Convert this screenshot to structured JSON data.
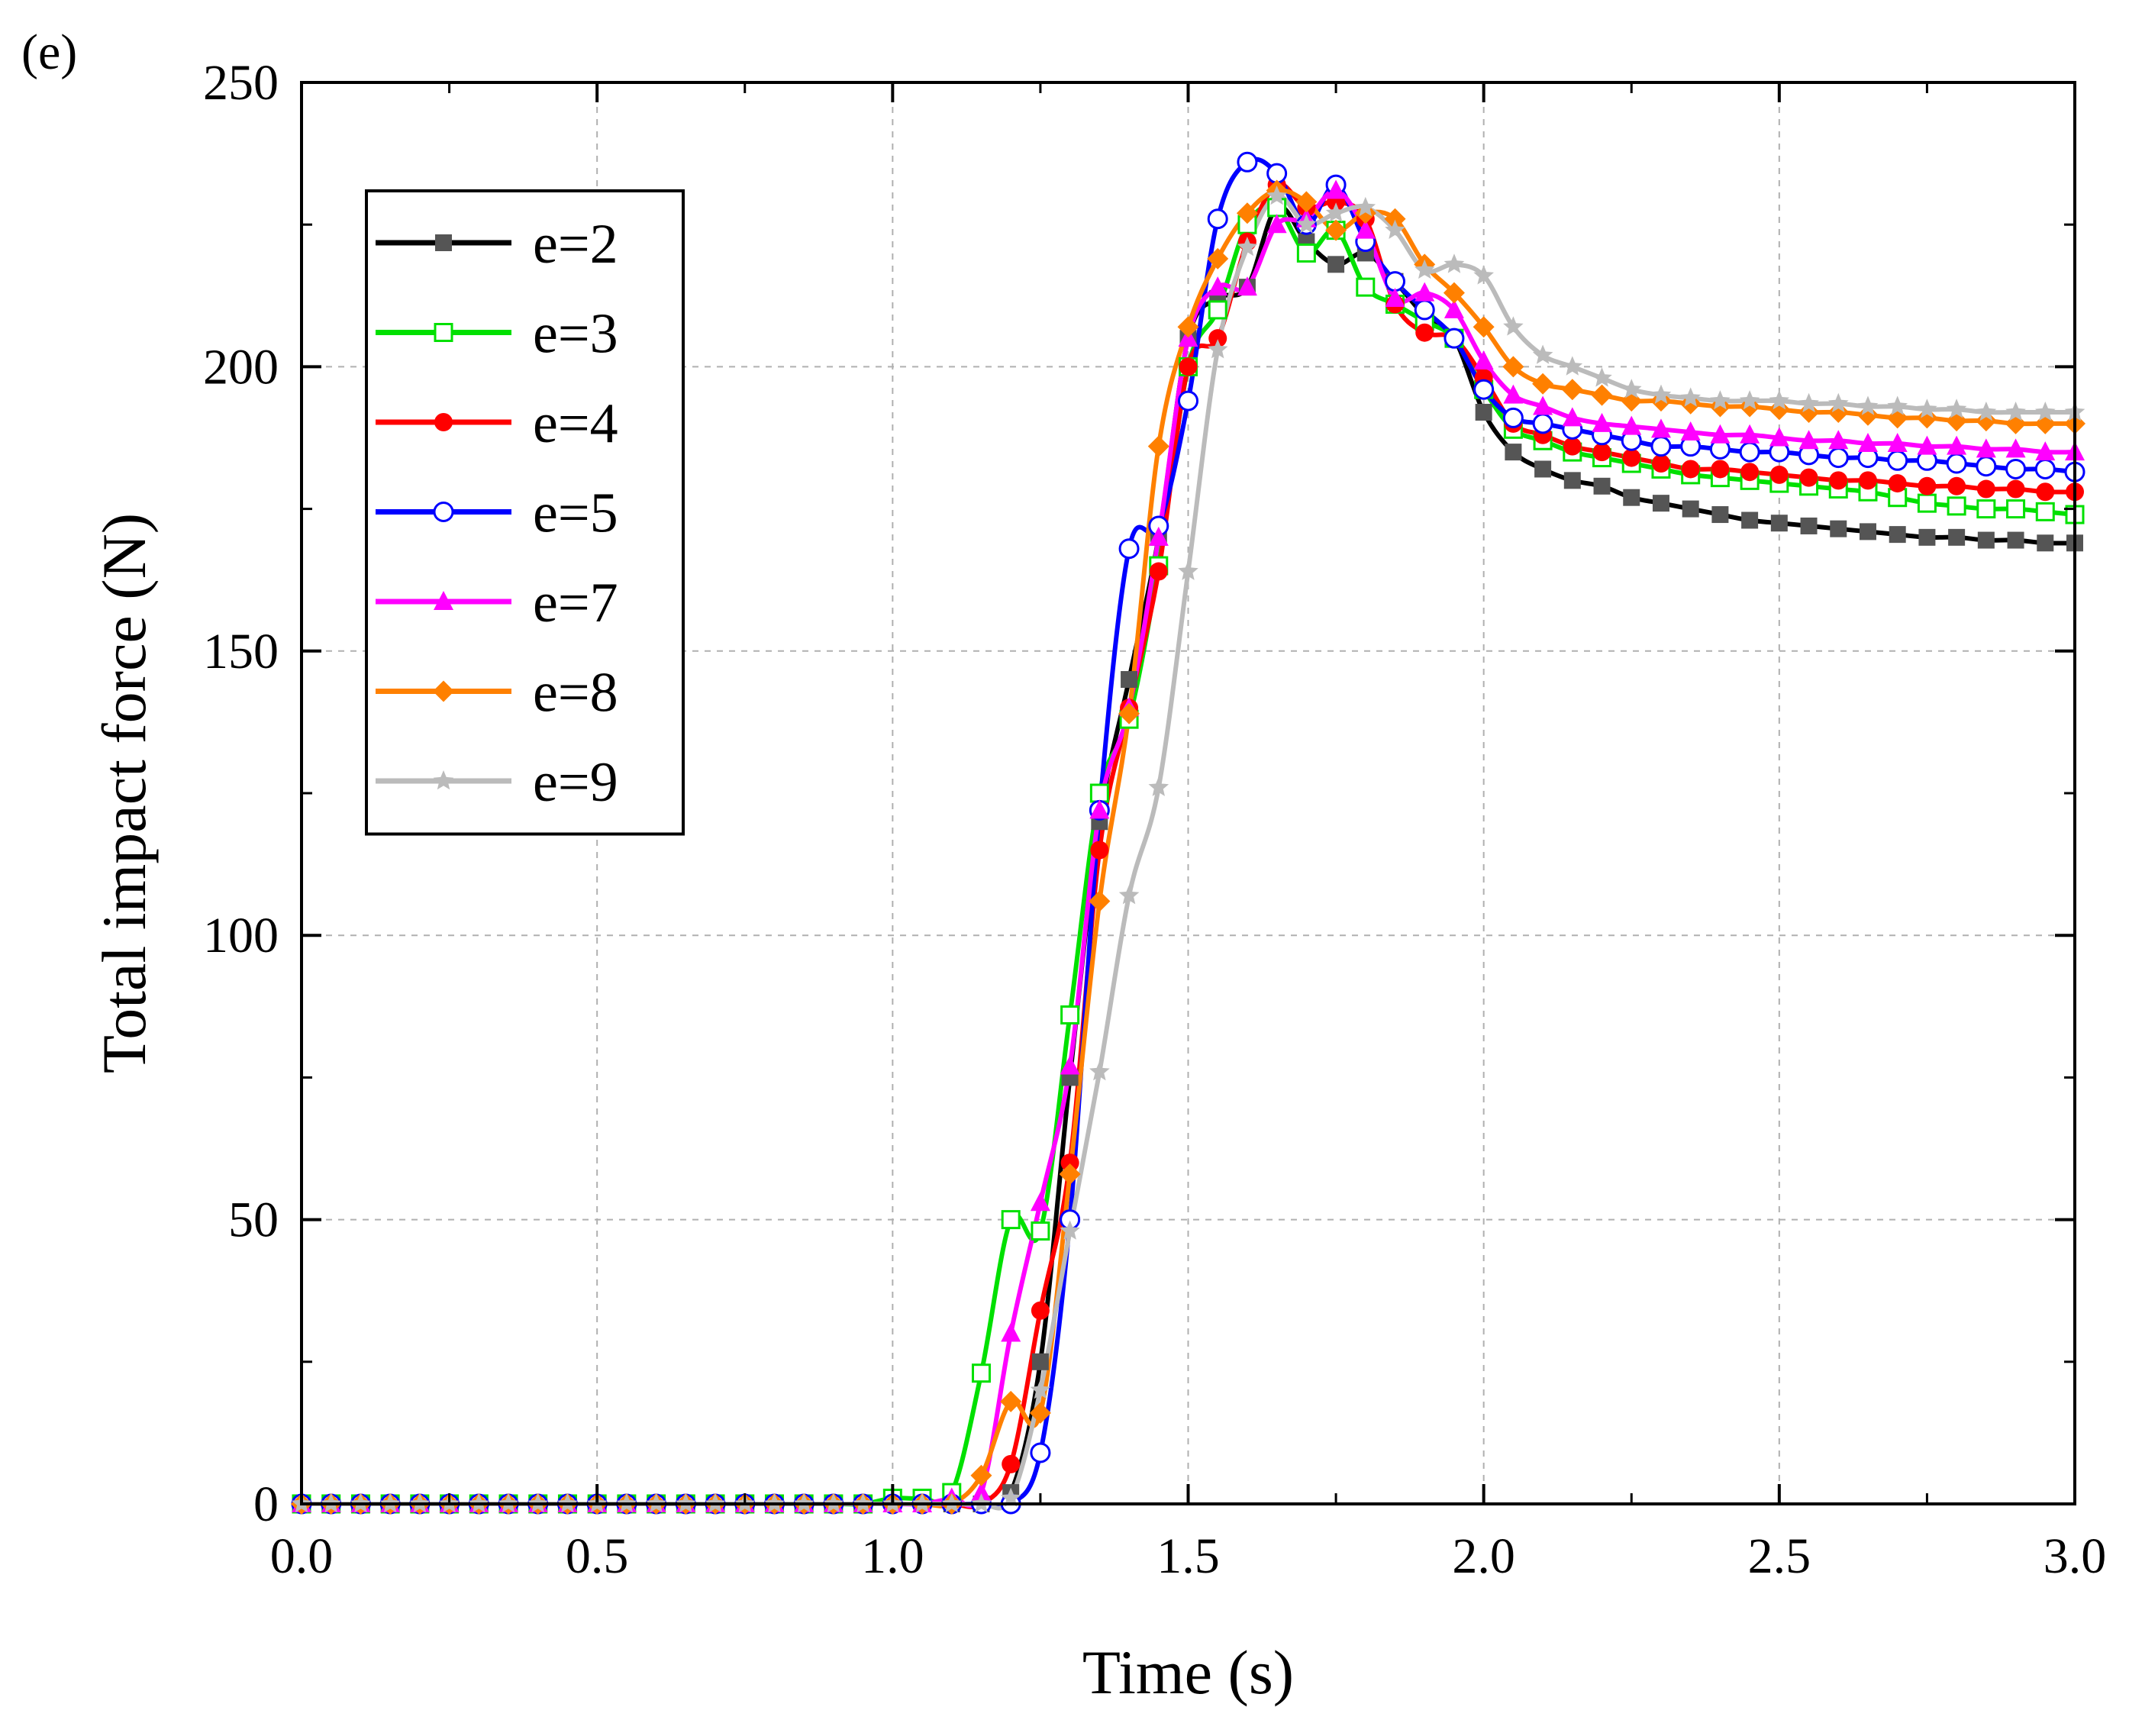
{
  "chart_data": {
    "type": "line",
    "panel_label": "(e)",
    "title": "",
    "xlabel": "Time (s)",
    "ylabel": "Total impact force (N)",
    "xlim": [
      0.0,
      3.0
    ],
    "ylim": [
      0,
      250
    ],
    "xticks": [
      "0.0",
      "0.5",
      "1.0",
      "1.5",
      "2.0",
      "2.5",
      "3.0"
    ],
    "yticks": [
      "0",
      "50",
      "100",
      "150",
      "200",
      "250"
    ],
    "grid": true,
    "legend_position": "top-left",
    "series": [
      {
        "name": "e=2",
        "color": "#000000",
        "marker_color": "#555555",
        "marker": "filled-square",
        "x": [
          0,
          0.05,
          0.1,
          0.15,
          0.2,
          0.25,
          0.3,
          0.35,
          0.4,
          0.45,
          0.5,
          0.55,
          0.6,
          0.65,
          0.7,
          0.75,
          0.8,
          0.85,
          0.9,
          0.95,
          1.0,
          1.05,
          1.1,
          1.15,
          1.2,
          1.25,
          1.3,
          1.35,
          1.4,
          1.45,
          1.5,
          1.55,
          1.6,
          1.65,
          1.7,
          1.75,
          1.8,
          1.85,
          1.9,
          1.95,
          2.0,
          2.05,
          2.1,
          2.15,
          2.2,
          2.25,
          2.3,
          2.35,
          2.4,
          2.45,
          2.5,
          2.55,
          2.6,
          2.65,
          2.7,
          2.75,
          2.8,
          2.85,
          2.9,
          2.95,
          3.0
        ],
        "y": [
          0,
          0,
          0,
          0,
          0,
          0,
          0,
          0,
          0,
          0,
          0,
          0,
          0,
          0,
          0,
          0,
          0,
          0,
          0,
          0,
          0,
          0,
          0,
          0,
          2,
          25,
          75,
          120,
          145,
          170,
          205,
          212,
          214,
          228,
          222,
          218,
          220,
          215,
          209,
          205,
          192,
          185,
          182,
          180,
          179,
          177,
          176,
          175,
          174,
          173,
          172.5,
          172,
          171.5,
          171,
          170.5,
          170,
          170,
          169.5,
          169.5,
          169,
          169
        ]
      },
      {
        "name": "e=3",
        "color": "#00e000",
        "marker_color": "#00e000",
        "marker": "open-square",
        "x": [
          0,
          0.05,
          0.1,
          0.15,
          0.2,
          0.25,
          0.3,
          0.35,
          0.4,
          0.45,
          0.5,
          0.55,
          0.6,
          0.65,
          0.7,
          0.75,
          0.8,
          0.85,
          0.9,
          0.95,
          1.0,
          1.05,
          1.1,
          1.15,
          1.2,
          1.25,
          1.3,
          1.35,
          1.4,
          1.45,
          1.5,
          1.55,
          1.6,
          1.65,
          1.7,
          1.75,
          1.8,
          1.85,
          1.9,
          1.95,
          2.0,
          2.05,
          2.1,
          2.15,
          2.2,
          2.25,
          2.3,
          2.35,
          2.4,
          2.45,
          2.5,
          2.55,
          2.6,
          2.65,
          2.7,
          2.75,
          2.8,
          2.85,
          2.9,
          2.95,
          3.0
        ],
        "y": [
          0,
          0,
          0,
          0,
          0,
          0,
          0,
          0,
          0,
          0,
          0,
          0,
          0,
          0,
          0,
          0,
          0,
          0,
          0,
          0,
          1,
          1,
          2,
          23,
          50,
          48,
          86,
          125,
          138,
          165,
          200,
          210,
          225,
          228,
          220,
          224,
          214,
          211,
          208,
          205,
          196,
          189,
          187,
          185,
          184,
          183,
          182,
          181,
          180.5,
          180,
          179.5,
          179,
          178.5,
          178,
          177,
          176,
          175.5,
          175,
          175,
          174.5,
          174
        ]
      },
      {
        "name": "e=4",
        "color": "#ff0000",
        "marker_color": "#ff0000",
        "marker": "filled-circle",
        "x": [
          0,
          0.05,
          0.1,
          0.15,
          0.2,
          0.25,
          0.3,
          0.35,
          0.4,
          0.45,
          0.5,
          0.55,
          0.6,
          0.65,
          0.7,
          0.75,
          0.8,
          0.85,
          0.9,
          0.95,
          1.0,
          1.05,
          1.1,
          1.15,
          1.2,
          1.25,
          1.3,
          1.35,
          1.4,
          1.45,
          1.5,
          1.55,
          1.6,
          1.65,
          1.7,
          1.75,
          1.8,
          1.85,
          1.9,
          1.95,
          2.0,
          2.05,
          2.1,
          2.15,
          2.2,
          2.25,
          2.3,
          2.35,
          2.4,
          2.45,
          2.5,
          2.55,
          2.6,
          2.65,
          2.7,
          2.75,
          2.8,
          2.85,
          2.9,
          2.95,
          3.0
        ],
        "y": [
          0,
          0,
          0,
          0,
          0,
          0,
          0,
          0,
          0,
          0,
          0,
          0,
          0,
          0,
          0,
          0,
          0,
          0,
          0,
          0,
          0,
          0,
          0,
          0,
          7,
          34,
          60,
          115,
          140,
          164,
          200,
          205,
          222,
          232,
          228,
          229,
          226,
          211,
          206,
          205,
          198,
          190,
          188,
          186,
          185,
          184,
          183,
          182,
          182,
          181.5,
          181,
          180.5,
          180,
          180,
          179.5,
          179,
          179,
          178.5,
          178.5,
          178,
          178
        ]
      },
      {
        "name": "e=5",
        "color": "#0000ff",
        "marker_color": "#0000ff",
        "marker": "open-circle",
        "x": [
          0,
          0.05,
          0.1,
          0.15,
          0.2,
          0.25,
          0.3,
          0.35,
          0.4,
          0.45,
          0.5,
          0.55,
          0.6,
          0.65,
          0.7,
          0.75,
          0.8,
          0.85,
          0.9,
          0.95,
          1.0,
          1.05,
          1.1,
          1.15,
          1.2,
          1.25,
          1.3,
          1.35,
          1.4,
          1.45,
          1.5,
          1.55,
          1.6,
          1.65,
          1.7,
          1.75,
          1.8,
          1.85,
          1.9,
          1.95,
          2.0,
          2.05,
          2.1,
          2.15,
          2.2,
          2.25,
          2.3,
          2.35,
          2.4,
          2.45,
          2.5,
          2.55,
          2.6,
          2.65,
          2.7,
          2.75,
          2.8,
          2.85,
          2.9,
          2.95,
          3.0
        ],
        "y": [
          0,
          0,
          0,
          0,
          0,
          0,
          0,
          0,
          0,
          0,
          0,
          0,
          0,
          0,
          0,
          0,
          0,
          0,
          0,
          0,
          0,
          0,
          0,
          0,
          0,
          9,
          50,
          122,
          168,
          172,
          194,
          226,
          236,
          234,
          225,
          232,
          222,
          215,
          210,
          205,
          196,
          191,
          190,
          189,
          188,
          187,
          186,
          186,
          185.5,
          185,
          185,
          184.5,
          184,
          184,
          183.5,
          183.5,
          183,
          182.5,
          182,
          182,
          181.5
        ]
      },
      {
        "name": "e=7",
        "color": "#ff00ff",
        "marker_color": "#ff00ff",
        "marker": "filled-triangle",
        "x": [
          0,
          0.05,
          0.1,
          0.15,
          0.2,
          0.25,
          0.3,
          0.35,
          0.4,
          0.45,
          0.5,
          0.55,
          0.6,
          0.65,
          0.7,
          0.75,
          0.8,
          0.85,
          0.9,
          0.95,
          1.0,
          1.05,
          1.1,
          1.15,
          1.2,
          1.25,
          1.3,
          1.35,
          1.4,
          1.45,
          1.5,
          1.55,
          1.6,
          1.65,
          1.7,
          1.75,
          1.8,
          1.85,
          1.9,
          1.95,
          2.0,
          2.05,
          2.1,
          2.15,
          2.2,
          2.25,
          2.3,
          2.35,
          2.4,
          2.45,
          2.5,
          2.55,
          2.6,
          2.65,
          2.7,
          2.75,
          2.8,
          2.85,
          2.9,
          2.95,
          3.0
        ],
        "y": [
          0,
          0,
          0,
          0,
          0,
          0,
          0,
          0,
          0,
          0,
          0,
          0,
          0,
          0,
          0,
          0,
          0,
          0,
          0,
          0,
          0,
          0,
          1,
          2,
          30,
          53,
          77,
          122,
          140,
          170,
          205,
          214,
          214,
          225,
          226,
          231,
          224,
          212,
          213,
          210,
          201,
          195,
          193,
          191,
          190,
          189.5,
          189,
          188.5,
          188,
          188,
          187.5,
          187,
          187,
          186.5,
          186.5,
          186,
          186,
          185.5,
          185.5,
          185,
          185
        ]
      },
      {
        "name": "e=8",
        "color": "#ff8000",
        "marker_color": "#ff8000",
        "marker": "filled-diamond",
        "x": [
          0,
          0.05,
          0.1,
          0.15,
          0.2,
          0.25,
          0.3,
          0.35,
          0.4,
          0.45,
          0.5,
          0.55,
          0.6,
          0.65,
          0.7,
          0.75,
          0.8,
          0.85,
          0.9,
          0.95,
          1.0,
          1.05,
          1.1,
          1.15,
          1.2,
          1.25,
          1.3,
          1.35,
          1.4,
          1.45,
          1.5,
          1.55,
          1.6,
          1.65,
          1.7,
          1.75,
          1.8,
          1.85,
          1.9,
          1.95,
          2.0,
          2.05,
          2.1,
          2.15,
          2.2,
          2.25,
          2.3,
          2.35,
          2.4,
          2.45,
          2.5,
          2.55,
          2.6,
          2.65,
          2.7,
          2.75,
          2.8,
          2.85,
          2.9,
          2.95,
          3.0
        ],
        "y": [
          0,
          0,
          0,
          0,
          0,
          0,
          0,
          0,
          0,
          0,
          0,
          0,
          0,
          0,
          0,
          0,
          0,
          0,
          0,
          0,
          0,
          0,
          0,
          5,
          18,
          16,
          58,
          106,
          139,
          186,
          207,
          219,
          227,
          231,
          229,
          224,
          227,
          226,
          218,
          213,
          207,
          200,
          197,
          196,
          195,
          194,
          194,
          193.5,
          193,
          193,
          192.5,
          192,
          192,
          191.5,
          191,
          191,
          190.5,
          190.5,
          190,
          190,
          190
        ]
      },
      {
        "name": "e=9",
        "color": "#bbbbbb",
        "marker_color": "#bbbbbb",
        "marker": "filled-star",
        "x": [
          0,
          0.05,
          0.1,
          0.15,
          0.2,
          0.25,
          0.3,
          0.35,
          0.4,
          0.45,
          0.5,
          0.55,
          0.6,
          0.65,
          0.7,
          0.75,
          0.8,
          0.85,
          0.9,
          0.95,
          1.0,
          1.05,
          1.1,
          1.15,
          1.2,
          1.25,
          1.3,
          1.35,
          1.4,
          1.45,
          1.5,
          1.55,
          1.6,
          1.65,
          1.7,
          1.75,
          1.8,
          1.85,
          1.9,
          1.95,
          2.0,
          2.05,
          2.1,
          2.15,
          2.2,
          2.25,
          2.3,
          2.35,
          2.4,
          2.45,
          2.5,
          2.55,
          2.6,
          2.65,
          2.7,
          2.75,
          2.8,
          2.85,
          2.9,
          2.95,
          3.0
        ],
        "y": [
          0,
          0,
          0,
          0,
          0,
          0,
          0,
          0,
          0,
          0,
          0,
          0,
          0,
          0,
          0,
          0,
          0,
          0,
          0,
          0,
          0,
          0,
          0,
          0,
          1,
          20,
          48,
          76,
          107,
          126,
          164,
          203,
          221,
          230,
          225,
          227,
          228,
          224,
          217,
          218,
          216,
          207,
          202,
          200,
          198,
          196,
          195,
          194.5,
          194,
          194,
          194,
          193.5,
          193.5,
          193,
          193,
          192.5,
          192.5,
          192,
          192,
          192,
          192
        ]
      }
    ]
  }
}
